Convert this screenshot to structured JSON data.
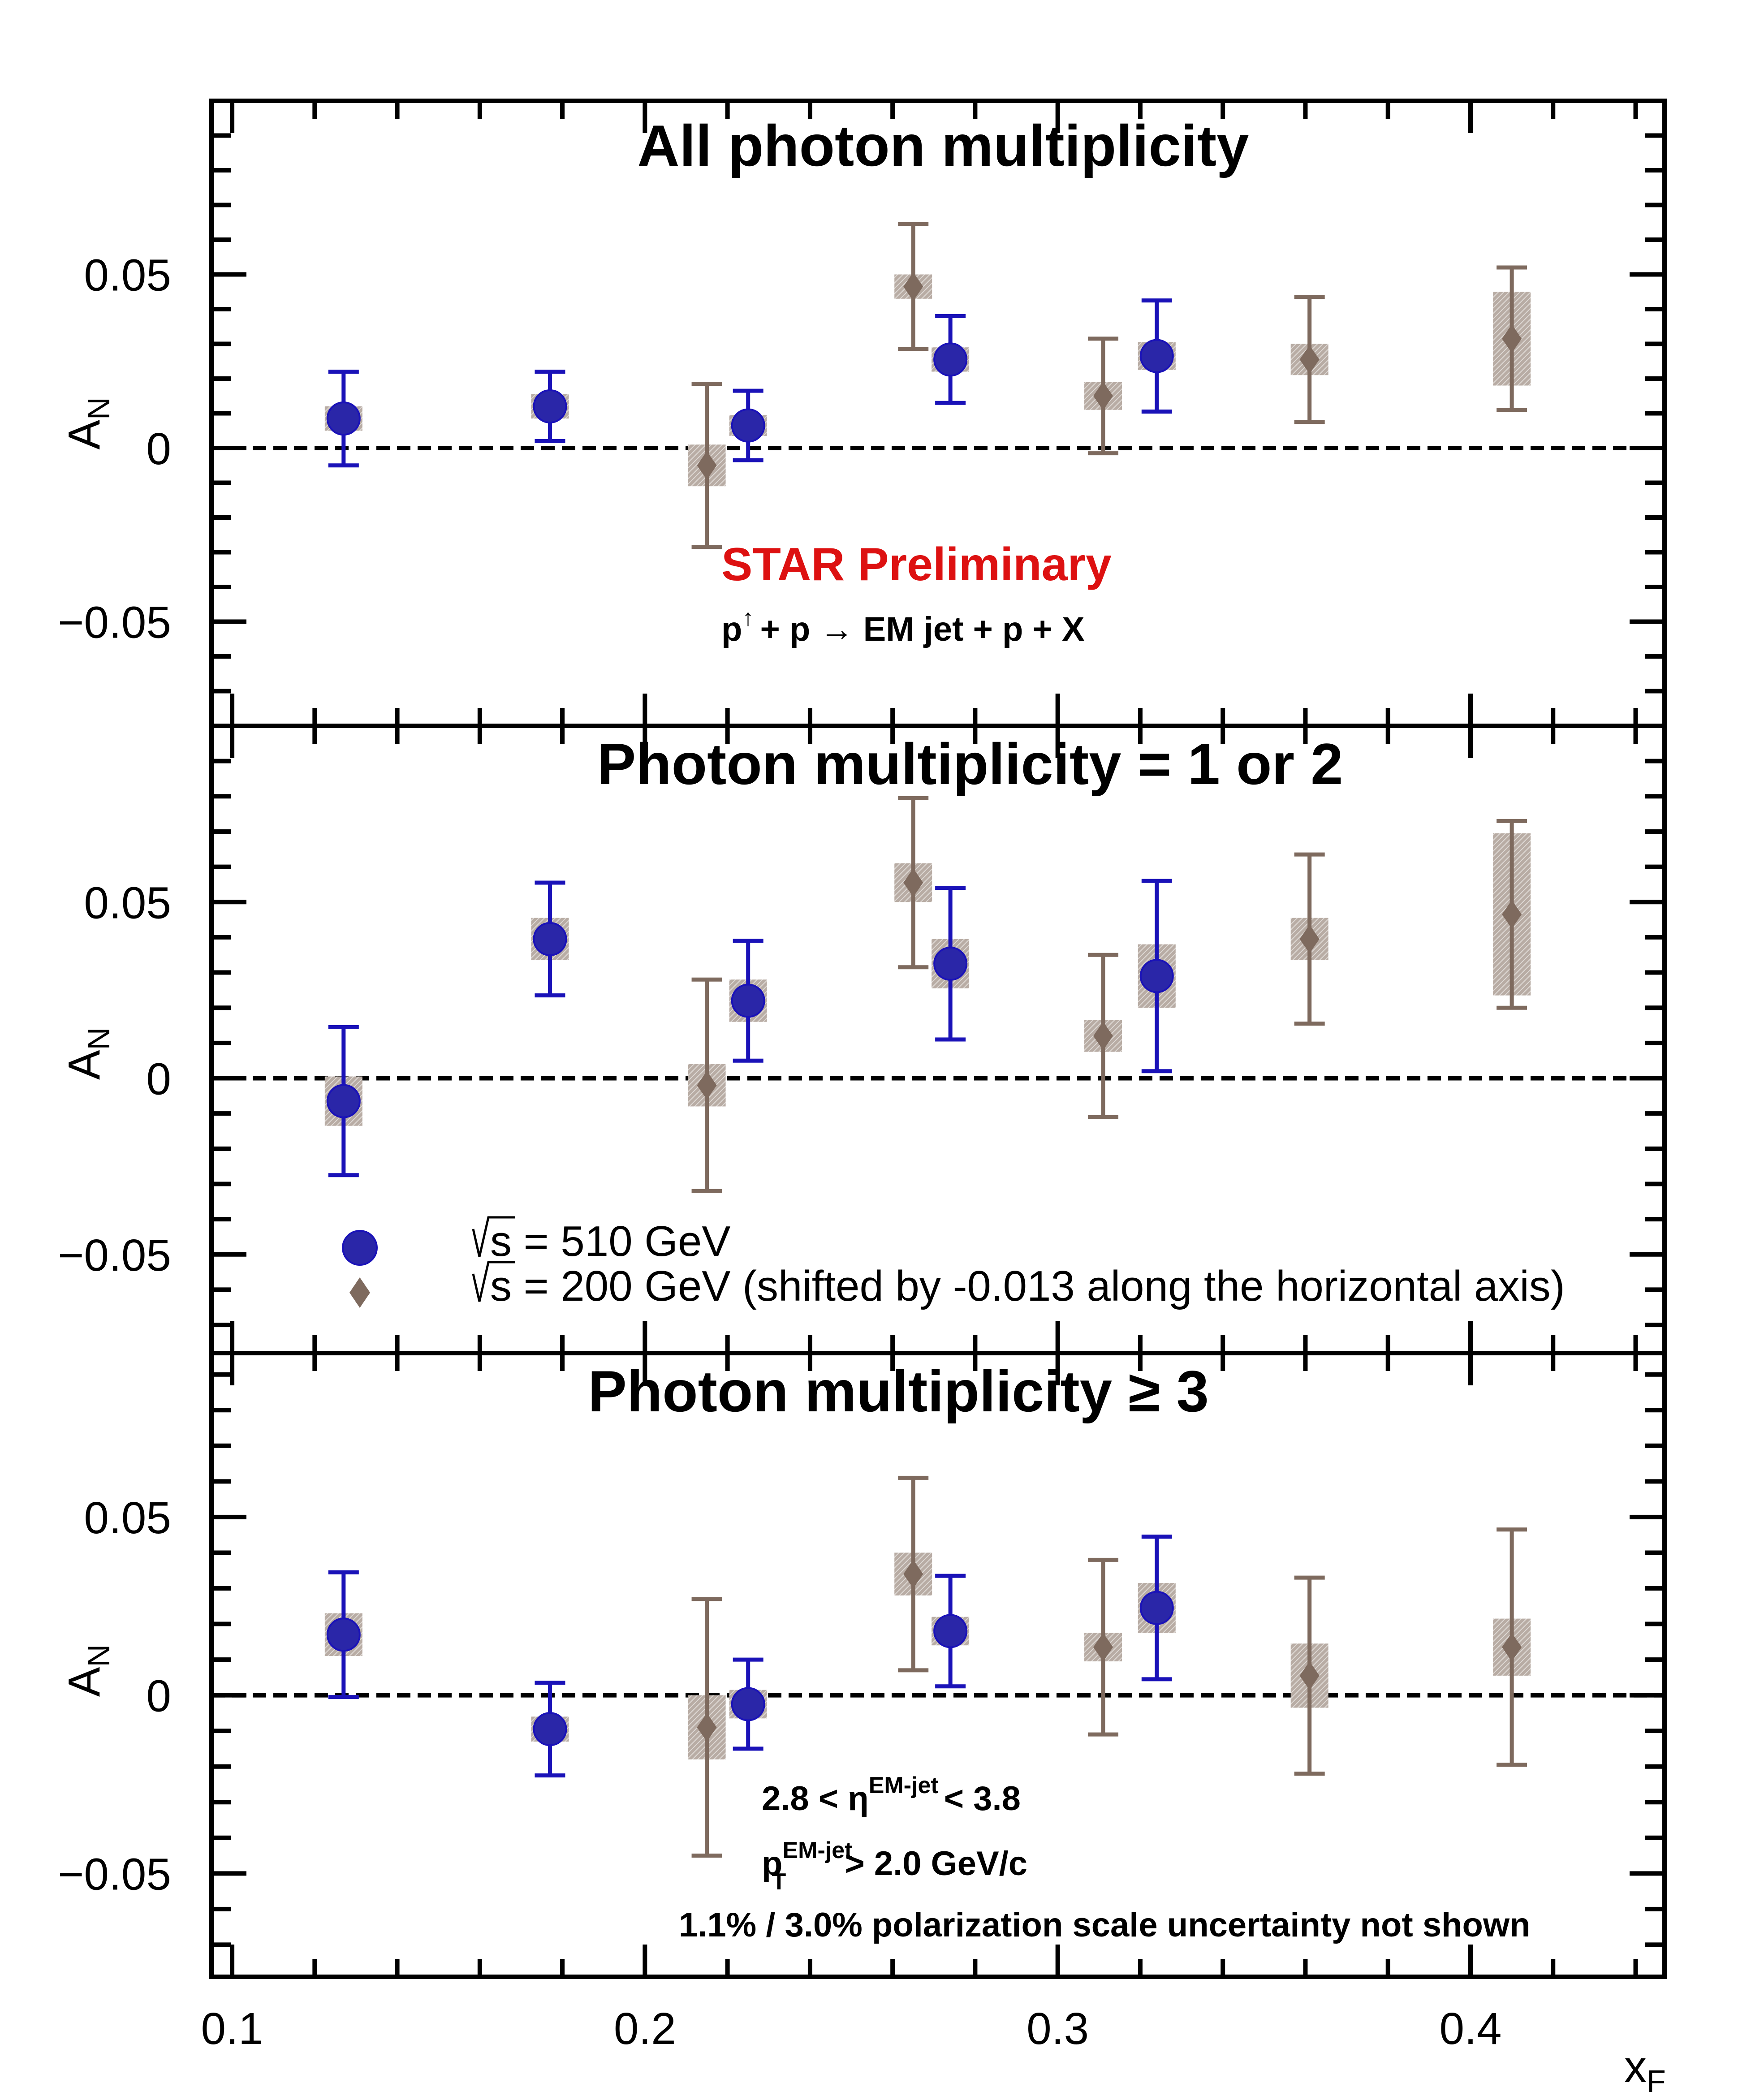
{
  "colors": {
    "s510": "#1a12b8",
    "s510_fill": "#2a26a8",
    "s200": "#7e6a5e",
    "sys_box": "#b8aca4",
    "preliminary": "#dd1111",
    "axis": "#000000"
  },
  "chart_data": [
    {
      "type": "scatter",
      "title": "All photon multiplicity",
      "xlabel": "",
      "ylabel": "A",
      "ylabel_sub": "N",
      "xlim": [
        0.095,
        0.447
      ],
      "ylim": [
        -0.08,
        0.1
      ],
      "y_ticks": [
        0.05,
        0,
        -0.05
      ],
      "y_tick_labels": [
        "0.05",
        "0",
        "−0.05"
      ],
      "reference_line": 0,
      "grid": false,
      "annotations": {
        "preliminary": "STAR Preliminary",
        "process": {
          "p1": "p",
          "arrow_up": "↑",
          "rest": "+ p  → EM jet + p + X"
        }
      },
      "series": [
        {
          "key": "s510",
          "marker": "circle",
          "points": [
            {
              "x": 0.127,
              "y": 0.0085,
              "err": 0.0135,
              "sys": 0.0035
            },
            {
              "x": 0.177,
              "y": 0.012,
              "err": 0.01,
              "sys": 0.0035
            },
            {
              "x": 0.225,
              "y": 0.0065,
              "err": 0.01,
              "sys": 0.003
            },
            {
              "x": 0.274,
              "y": 0.0255,
              "err": 0.0125,
              "sys": 0.0035
            },
            {
              "x": 0.324,
              "y": 0.0265,
              "err": 0.016,
              "sys": 0.004
            }
          ]
        },
        {
          "key": "s200",
          "marker": "diamond",
          "points": [
            {
              "x": 0.215,
              "y": -0.005,
              "err": 0.0235,
              "sys": 0.006
            },
            {
              "x": 0.265,
              "y": 0.0465,
              "err": 0.018,
              "sys": 0.0035
            },
            {
              "x": 0.311,
              "y": 0.015,
              "err": 0.0165,
              "sys": 0.004
            },
            {
              "x": 0.361,
              "y": 0.0255,
              "err": 0.018,
              "sys": 0.0045
            },
            {
              "x": 0.41,
              "y": 0.0315,
              "err": 0.0205,
              "sys": 0.0135
            }
          ]
        }
      ]
    },
    {
      "type": "scatter",
      "title": "Photon multiplicity = 1 or 2",
      "xlabel": "",
      "ylabel": "A",
      "ylabel_sub": "N",
      "xlim": [
        0.095,
        0.447
      ],
      "ylim": [
        -0.078,
        0.1
      ],
      "y_ticks": [
        0.05,
        0,
        -0.05
      ],
      "y_tick_labels": [
        "0.05",
        "0",
        "−0.05"
      ],
      "reference_line": 0,
      "grid": false,
      "legend": {
        "placement": "bottom-left",
        "entries": [
          {
            "key": "s510",
            "marker": "circle",
            "sqrt": "s",
            "text": " = 510 GeV"
          },
          {
            "key": "s200",
            "marker": "diamond",
            "sqrt": "s",
            "text": " = 200 GeV (shifted by -0.013 along the horizontal axis)"
          }
        ]
      },
      "series": [
        {
          "key": "s510",
          "marker": "circle",
          "points": [
            {
              "x": 0.127,
              "y": -0.0065,
              "err": 0.021,
              "sys": 0.007
            },
            {
              "x": 0.177,
              "y": 0.0395,
              "err": 0.016,
              "sys": 0.006
            },
            {
              "x": 0.225,
              "y": 0.022,
              "err": 0.017,
              "sys": 0.006
            },
            {
              "x": 0.274,
              "y": 0.0325,
              "err": 0.0215,
              "sys": 0.007
            },
            {
              "x": 0.324,
              "y": 0.029,
              "err": 0.027,
              "sys": 0.009
            }
          ]
        },
        {
          "key": "s200",
          "marker": "diamond",
          "points": [
            {
              "x": 0.215,
              "y": -0.002,
              "err": 0.03,
              "sys": 0.006
            },
            {
              "x": 0.265,
              "y": 0.0555,
              "err": 0.024,
              "sys": 0.0055
            },
            {
              "x": 0.311,
              "y": 0.012,
              "err": 0.023,
              "sys": 0.0045
            },
            {
              "x": 0.361,
              "y": 0.0395,
              "err": 0.024,
              "sys": 0.006
            },
            {
              "x": 0.41,
              "y": 0.0465,
              "err": 0.0265,
              "sys": 0.023
            }
          ]
        }
      ]
    },
    {
      "type": "scatter",
      "title": "Photon multiplicity  ≥ 3",
      "xlabel": "x",
      "xlabel_sub": "F",
      "ylabel": "A",
      "ylabel_sub": "N",
      "xlim": [
        0.095,
        0.447
      ],
      "ylim": [
        -0.079,
        0.096
      ],
      "y_ticks": [
        0.05,
        0,
        -0.05
      ],
      "y_tick_labels": [
        "0.05",
        "0",
        "−0.05"
      ],
      "x_ticks": [
        0.1,
        0.2,
        0.3,
        0.4
      ],
      "x_tick_labels": [
        "0.1",
        "0.2",
        "0.3",
        "0.4"
      ],
      "reference_line": 0,
      "grid": false,
      "annotations": {
        "eta_cut": {
          "lo": "2.8 < η",
          "sup": "EM-jet",
          "hi": "< 3.8"
        },
        "pt_cut": {
          "p": "p",
          "sub": "T",
          "sup": "EM-jet",
          "rest": " > 2.0 GeV/c"
        },
        "polarization": "1.1% / 3.0% polarization scale uncertainty not shown"
      },
      "series": [
        {
          "key": "s510",
          "marker": "circle",
          "points": [
            {
              "x": 0.127,
              "y": 0.017,
              "err": 0.0175,
              "sys": 0.006
            },
            {
              "x": 0.177,
              "y": -0.0095,
              "err": 0.013,
              "sys": 0.0035
            },
            {
              "x": 0.225,
              "y": -0.0025,
              "err": 0.0125,
              "sys": 0.004
            },
            {
              "x": 0.274,
              "y": 0.018,
              "err": 0.0155,
              "sys": 0.004
            },
            {
              "x": 0.324,
              "y": 0.0245,
              "err": 0.02,
              "sys": 0.007
            }
          ]
        },
        {
          "key": "s200",
          "marker": "diamond",
          "points": [
            {
              "x": 0.215,
              "y": -0.009,
              "err": 0.036,
              "sys": 0.009
            },
            {
              "x": 0.265,
              "y": 0.034,
              "err": 0.027,
              "sys": 0.006
            },
            {
              "x": 0.311,
              "y": 0.0135,
              "err": 0.0245,
              "sys": 0.004
            },
            {
              "x": 0.361,
              "y": 0.0055,
              "err": 0.0275,
              "sys": 0.009
            },
            {
              "x": 0.41,
              "y": 0.0135,
              "err": 0.033,
              "sys": 0.008
            }
          ]
        }
      ]
    }
  ]
}
